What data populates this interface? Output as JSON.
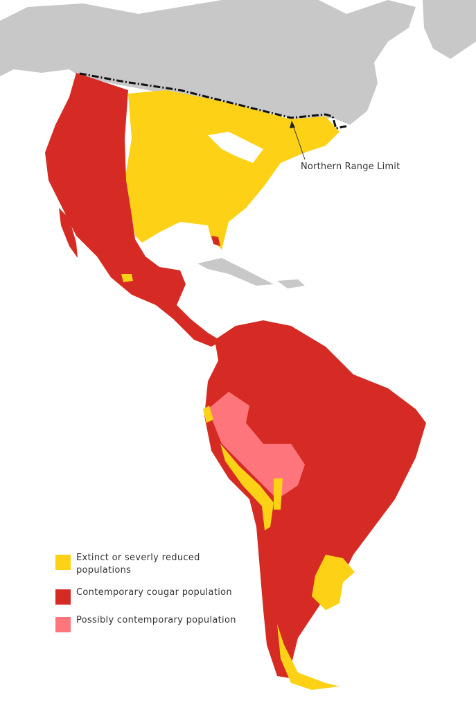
{
  "annotation": {
    "label": "Northern Range Limit"
  },
  "legend": [
    {
      "label": "Extinct or severly reduced populations",
      "color": "#FDD116"
    },
    {
      "label": "Contemporary cougar population",
      "color": "#D52B24"
    },
    {
      "label": "Possibly contemporary population",
      "color": "#FE767C"
    }
  ],
  "colors": {
    "land_other": "#C8C8C8",
    "border": "#F0B0A8",
    "range_limit": "#111111"
  }
}
